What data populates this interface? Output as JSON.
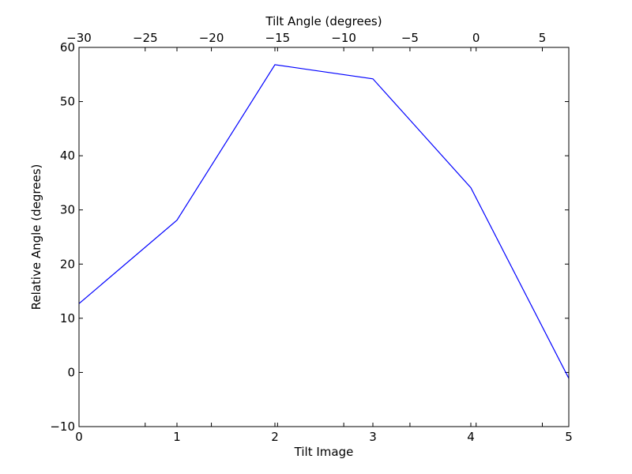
{
  "chart_data": {
    "type": "line",
    "xlabel": "Tilt Image",
    "x2label": "Tilt Angle (degrees)",
    "ylabel": "Relative Angle (degrees)",
    "xlim": [
      0,
      5
    ],
    "x2lim": [
      -30,
      7
    ],
    "ylim": [
      -10,
      60
    ],
    "grid": false,
    "x_ticks": [
      0,
      1,
      2,
      3,
      4,
      5
    ],
    "x_tick_labels": [
      "0",
      "1",
      "2",
      "3",
      "4",
      "5"
    ],
    "x2_ticks": [
      -30,
      -25,
      -20,
      -15,
      -10,
      -5,
      0,
      5
    ],
    "x2_tick_labels": [
      "−30",
      "−25",
      "−20",
      "−15",
      "−10",
      "−5",
      "0",
      "5"
    ],
    "y_ticks": [
      -10,
      0,
      10,
      20,
      30,
      40,
      50,
      60
    ],
    "y_tick_labels": [
      "−10",
      "0",
      "10",
      "20",
      "30",
      "40",
      "50",
      "60"
    ],
    "series": [
      {
        "color": "#0000ff",
        "x": [
          0,
          1,
          2,
          3,
          4,
          5
        ],
        "y": [
          12.7,
          28.1,
          56.8,
          54.2,
          34.1,
          -1.1
        ]
      }
    ]
  }
}
